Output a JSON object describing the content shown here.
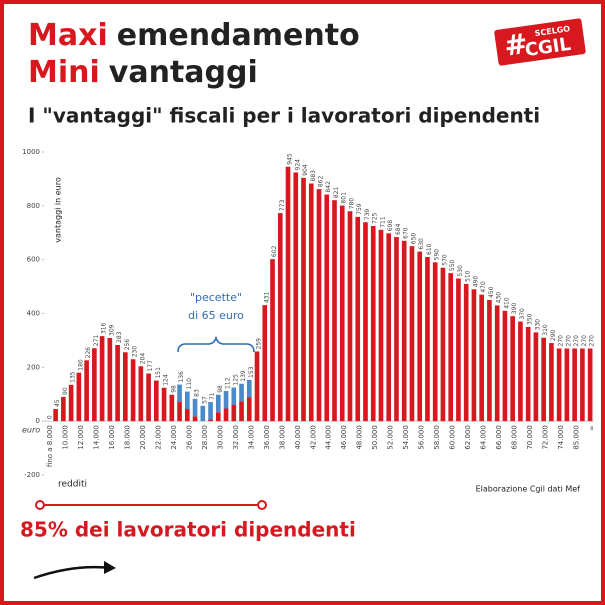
{
  "chart_data": {
    "type": "bar",
    "title_lines": [
      {
        "highlight": "Maxi",
        "rest": "emendamento"
      },
      {
        "highlight": "Mini",
        "rest": "vantaggi"
      }
    ],
    "logo": [
      "#",
      "SCELGO",
      "CGIL"
    ],
    "subtitle": "I \"vantaggi\" fiscali per i lavoratori dipendenti",
    "y_label": "vantaggi in euro",
    "y_unit": "euro",
    "x_label": "redditi",
    "source": "Elaborazione Cgil dati Mef",
    "annotation": [
      "\"pecette\"",
      "di 65 euro"
    ],
    "footer": "85% dei lavoratori dipendenti",
    "ylim": [
      -200,
      1000
    ],
    "yticks": [
      -200,
      0,
      200,
      400,
      600,
      800,
      1000
    ],
    "categories": [
      "fino a 8.000",
      null,
      "10.000",
      null,
      "12.000",
      null,
      "14.000",
      null,
      "16.000",
      null,
      "18.000",
      null,
      "20.000",
      null,
      "22.000",
      null,
      "24.000",
      null,
      "26.000",
      null,
      "28.000",
      null,
      "30.000",
      null,
      "32.000",
      null,
      "34.000",
      null,
      "36.000",
      null,
      "38.000",
      null,
      "40.000",
      null,
      "42.000",
      null,
      "44.000",
      null,
      "46.000",
      null,
      "48.000",
      null,
      "50.000",
      null,
      "52.000",
      null,
      "54.000",
      null,
      "56.000",
      null,
      "58.000",
      null,
      "60.000",
      null,
      "62.000",
      null,
      "64.000",
      null,
      "66.000",
      null,
      "68.000",
      null,
      "70.000",
      null,
      "72.000",
      null,
      "74.000",
      null,
      "85.000",
      null,
      "∞"
    ],
    "series": [
      {
        "color": "#d7191f",
        "values": [
          0,
          45,
          90,
          135,
          180,
          226,
          271,
          316,
          309,
          283,
          256,
          230,
          204,
          177,
          151,
          124,
          98,
          71,
          45,
          18,
          0,
          6,
          33,
          47,
          60,
          74,
          88,
          259,
          431,
          602,
          773,
          945,
          924,
          904,
          883,
          862,
          842,
          821,
          801,
          780,
          759,
          739,
          725,
          711,
          698,
          684,
          670,
          650,
          630,
          610,
          590,
          570,
          550,
          530,
          510,
          490,
          470,
          450,
          430,
          410,
          390,
          370,
          350,
          330,
          310,
          290,
          270,
          270,
          270,
          270,
          270
        ]
      },
      {
        "color": "#4a8ac9",
        "values": [
          null,
          null,
          null,
          null,
          null,
          null,
          null,
          null,
          null,
          null,
          null,
          null,
          null,
          null,
          null,
          null,
          null,
          65,
          65,
          65,
          57,
          65,
          65,
          65,
          65,
          65,
          65,
          null,
          null,
          null,
          null,
          null,
          null,
          null,
          null,
          null,
          null,
          null,
          null,
          null,
          null,
          null,
          null,
          null,
          null,
          null,
          null,
          null,
          null,
          null,
          null,
          null,
          null,
          null,
          null,
          null,
          null,
          null,
          null,
          null,
          null,
          null,
          null,
          null,
          null,
          null,
          null,
          null,
          null,
          null,
          null
        ]
      }
    ],
    "totals": [
      null,
      null,
      null,
      null,
      null,
      null,
      null,
      null,
      null,
      null,
      null,
      null,
      null,
      null,
      null,
      null,
      null,
      136,
      110,
      83,
      57,
      71,
      98,
      112,
      125,
      139,
      153,
      null,
      null,
      null,
      null,
      null,
      null,
      null,
      null,
      null,
      null,
      null,
      null,
      null,
      null,
      null,
      null,
      null,
      null,
      null,
      null,
      null,
      null,
      null,
      null,
      null,
      null,
      null,
      null,
      null,
      null,
      null,
      null,
      null,
      null,
      null,
      null,
      null,
      null,
      null,
      null,
      null,
      null,
      null,
      null
    ]
  }
}
